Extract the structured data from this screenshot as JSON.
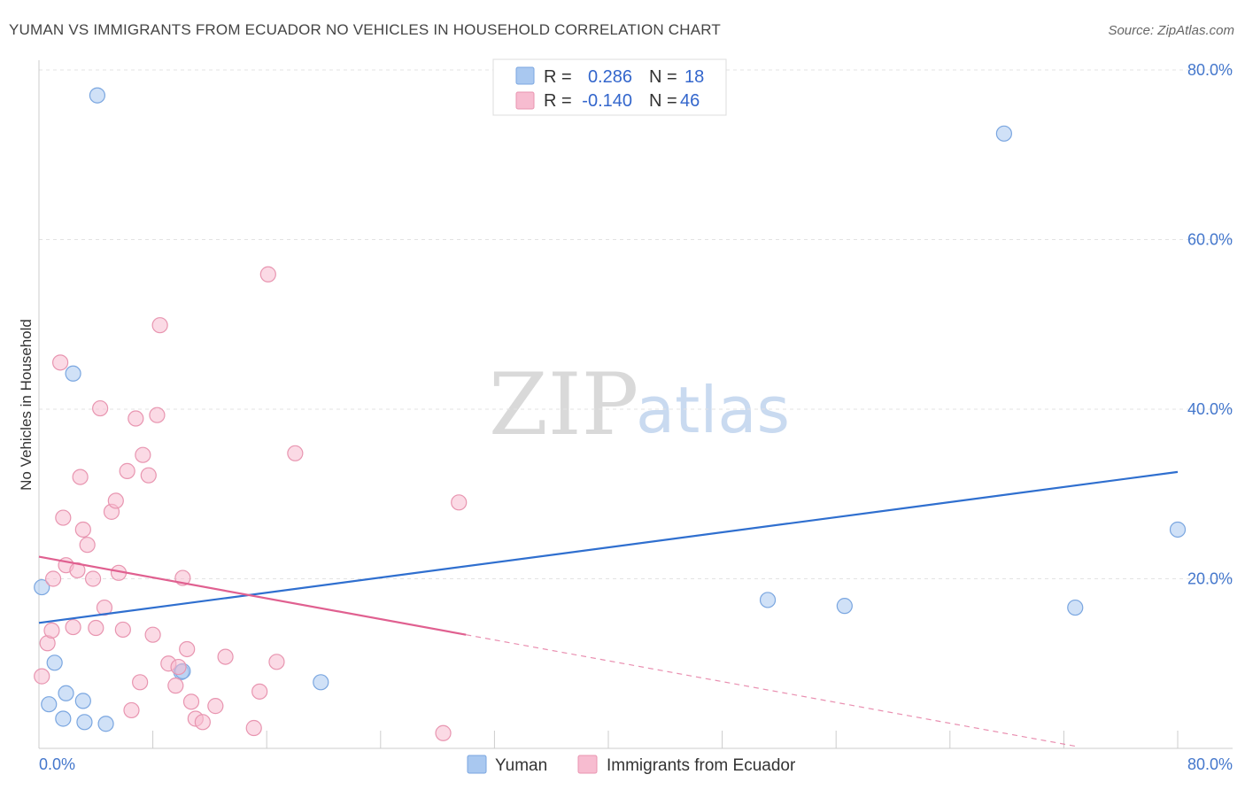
{
  "chart_data": {
    "type": "scatter",
    "title": "YUMAN VS IMMIGRANTS FROM ECUADOR NO VEHICLES IN HOUSEHOLD CORRELATION CHART",
    "source": "Source: ZipAtlas.com",
    "ylabel": "No Vehicles in Household",
    "xlabel": "",
    "xlim": [
      0,
      80
    ],
    "ylim": [
      0,
      80
    ],
    "y_ticks": [
      {
        "value": 20,
        "label": "20.0%"
      },
      {
        "value": 40,
        "label": "40.0%"
      },
      {
        "value": 60,
        "label": "60.0%"
      },
      {
        "value": 80,
        "label": "80.0%"
      }
    ],
    "x_tick_labels": {
      "min": "0.0%",
      "max": "80.0%"
    },
    "x_minor_ticks": [
      8,
      16,
      24,
      32,
      40,
      48,
      56,
      64,
      72,
      80
    ],
    "watermark": {
      "zip": "ZIP",
      "atlas": "atlas"
    },
    "legend": {
      "r_label": "R =",
      "n_label": "N =",
      "entries": [
        {
          "name": "Yuman",
          "r": "0.286",
          "n": "18",
          "color": "#a9c8f0",
          "stroke": "#7aa6e0"
        },
        {
          "name": "Immigrants from Ecuador",
          "r": "-0.140",
          "n": "46",
          "color": "#f7bcd0",
          "stroke": "#e895b0"
        }
      ]
    },
    "series": [
      {
        "name": "Yuman",
        "color": "#a9c8f0",
        "stroke": "#7aa6e0",
        "line_color": "#2f6fcf",
        "trend": {
          "x0": 0,
          "y0": 14.8,
          "x1": 80,
          "y1": 32.6
        },
        "points": [
          [
            0.2,
            19.0
          ],
          [
            4.1,
            77.0
          ],
          [
            2.4,
            44.2
          ],
          [
            1.1,
            10.1
          ],
          [
            0.7,
            5.2
          ],
          [
            1.9,
            6.5
          ],
          [
            3.1,
            5.6
          ],
          [
            1.7,
            3.5
          ],
          [
            3.2,
            3.1
          ],
          [
            4.7,
            2.9
          ],
          [
            10.0,
            9.0
          ],
          [
            19.8,
            7.8
          ],
          [
            67.8,
            72.5
          ],
          [
            80.0,
            25.8
          ],
          [
            51.2,
            17.5
          ],
          [
            56.6,
            16.8
          ],
          [
            72.8,
            16.6
          ],
          [
            10.1,
            9.1
          ]
        ]
      },
      {
        "name": "Immigrants from Ecuador",
        "color": "#f7bcd0",
        "stroke": "#e895b0",
        "line_color": "#e06090",
        "trend": {
          "x0": 0,
          "y0": 22.6,
          "x1": 30,
          "y1": 13.4
        },
        "trend_dashed": {
          "x0": 30,
          "y0": 13.4,
          "x1": 73,
          "y1": 0.2
        },
        "points": [
          [
            0.2,
            8.5
          ],
          [
            0.6,
            12.4
          ],
          [
            0.9,
            13.9
          ],
          [
            1.0,
            20.0
          ],
          [
            1.5,
            45.5
          ],
          [
            1.7,
            27.2
          ],
          [
            1.9,
            21.6
          ],
          [
            2.4,
            14.3
          ],
          [
            2.7,
            21.0
          ],
          [
            2.9,
            32.0
          ],
          [
            3.1,
            25.8
          ],
          [
            3.4,
            24.0
          ],
          [
            3.8,
            20.0
          ],
          [
            4.0,
            14.2
          ],
          [
            4.3,
            40.1
          ],
          [
            4.6,
            16.6
          ],
          [
            5.1,
            27.9
          ],
          [
            5.4,
            29.2
          ],
          [
            5.6,
            20.7
          ],
          [
            5.9,
            14.0
          ],
          [
            6.2,
            32.7
          ],
          [
            6.5,
            4.5
          ],
          [
            6.8,
            38.9
          ],
          [
            7.1,
            7.8
          ],
          [
            7.3,
            34.6
          ],
          [
            7.7,
            32.2
          ],
          [
            8.0,
            13.4
          ],
          [
            8.3,
            39.3
          ],
          [
            8.5,
            49.9
          ],
          [
            9.1,
            10.0
          ],
          [
            9.6,
            7.4
          ],
          [
            9.8,
            9.6
          ],
          [
            10.1,
            20.1
          ],
          [
            10.4,
            11.7
          ],
          [
            10.7,
            5.5
          ],
          [
            11.0,
            3.5
          ],
          [
            11.5,
            3.1
          ],
          [
            12.4,
            5.0
          ],
          [
            13.1,
            10.8
          ],
          [
            15.1,
            2.4
          ],
          [
            15.5,
            6.7
          ],
          [
            16.1,
            55.9
          ],
          [
            16.7,
            10.2
          ],
          [
            18.0,
            34.8
          ],
          [
            28.4,
            1.8
          ],
          [
            29.5,
            29.0
          ]
        ]
      }
    ]
  }
}
